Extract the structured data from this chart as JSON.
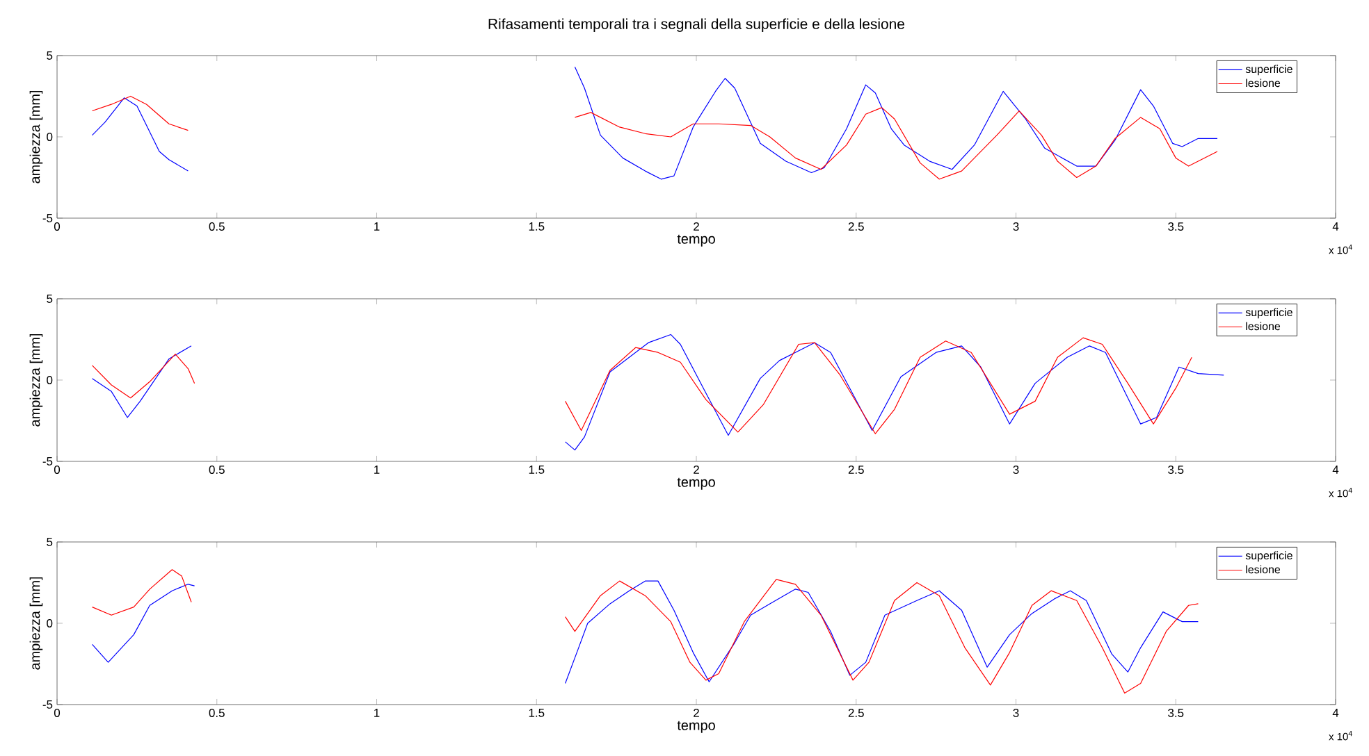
{
  "chart_data": [
    {
      "type": "line",
      "title": "Rifasamenti temporali tra i segnali della superficie e della lesione",
      "xlabel": "tempo",
      "ylabel": "ampiezza [mm]",
      "xlim": [
        0,
        4
      ],
      "xticks": [
        0,
        0.5,
        1,
        1.5,
        2,
        2.5,
        3,
        3.5,
        4
      ],
      "ylim": [
        -5,
        5
      ],
      "yticks": [
        -5,
        0,
        5
      ],
      "legend": "top right",
      "annotations": [
        "x 10$^{4}$"
      ],
      "series": [
        {
          "name": "superficie",
          "color": "#0000ff",
          "x": [
            0.11,
            0.15,
            0.21,
            0.25,
            0.32,
            0.35,
            0.41,
            null,
            1.62,
            1.65,
            1.7,
            1.77,
            1.84,
            1.89,
            1.93,
            1.99,
            2.06,
            2.09,
            2.12,
            2.2,
            2.28,
            2.36,
            2.4,
            2.47,
            2.53,
            2.56,
            2.61,
            2.65,
            2.73,
            2.8,
            2.87,
            2.96,
            3.03,
            3.09,
            3.19,
            3.25,
            3.31,
            3.39,
            3.43,
            3.49,
            3.52,
            3.57,
            3.63
          ],
          "values": [
            0.1,
            0.9,
            2.4,
            1.9,
            -0.9,
            -1.4,
            -2.1,
            null,
            4.3,
            3.0,
            0.1,
            -1.3,
            -2.1,
            -2.6,
            -2.4,
            0.6,
            2.8,
            3.6,
            3.0,
            -0.4,
            -1.5,
            -2.2,
            -1.9,
            0.5,
            3.2,
            2.7,
            0.5,
            -0.5,
            -1.5,
            -2.0,
            -0.5,
            2.8,
            1.1,
            -0.7,
            -1.8,
            -1.8,
            -0.2,
            2.9,
            1.9,
            -0.4,
            -0.6,
            -0.1,
            -0.1
          ]
        },
        {
          "name": "lesione",
          "color": "#ff0000",
          "x": [
            0.11,
            0.17,
            0.23,
            0.28,
            0.35,
            0.41,
            null,
            1.62,
            1.67,
            1.76,
            1.84,
            1.92,
            1.99,
            2.07,
            2.17,
            2.23,
            2.31,
            2.39,
            2.47,
            2.53,
            2.58,
            2.62,
            2.7,
            2.76,
            2.83,
            2.94,
            3.01,
            3.08,
            3.13,
            3.19,
            3.25,
            3.31,
            3.39,
            3.45,
            3.5,
            3.54,
            3.63
          ],
          "values": [
            1.6,
            2.0,
            2.5,
            2.0,
            0.8,
            0.4,
            null,
            1.2,
            1.5,
            0.6,
            0.2,
            0,
            0.8,
            0.8,
            0.7,
            0,
            -1.3,
            -2.0,
            -0.5,
            1.4,
            1.8,
            1.1,
            -1.6,
            -2.6,
            -2.1,
            0.1,
            1.6,
            0.1,
            -1.5,
            -2.5,
            -1.8,
            -0.1,
            1.2,
            0.5,
            -1.3,
            -1.8,
            -0.9
          ]
        }
      ]
    },
    {
      "type": "line",
      "xlabel": "tempo",
      "ylabel": "ampiezza [mm]",
      "xlim": [
        0,
        4
      ],
      "xticks": [
        0,
        0.5,
        1,
        1.5,
        2,
        2.5,
        3,
        3.5,
        4
      ],
      "ylim": [
        -5,
        5
      ],
      "yticks": [
        -5,
        0,
        5
      ],
      "legend": "top right",
      "annotations": [
        "x 10$^{4}$"
      ],
      "series": [
        {
          "name": "superficie",
          "color": "#0000ff",
          "x": [
            0.11,
            0.17,
            0.22,
            0.26,
            0.35,
            0.42,
            null,
            1.59,
            1.62,
            1.65,
            1.73,
            1.79,
            1.85,
            1.92,
            1.95,
            2.03,
            2.1,
            2.2,
            2.26,
            2.37,
            2.42,
            2.48,
            2.55,
            2.64,
            2.75,
            2.83,
            2.89,
            2.98,
            3.06,
            3.16,
            3.23,
            3.28,
            3.39,
            3.44,
            3.51,
            3.57,
            3.65
          ],
          "values": [
            0.1,
            -0.7,
            -2.3,
            -1.3,
            1.3,
            2.1,
            null,
            -3.8,
            -4.3,
            -3.5,
            0.5,
            1.4,
            2.3,
            2.8,
            2.2,
            -0.8,
            -3.4,
            0.1,
            1.2,
            2.3,
            1.7,
            -0.5,
            -3.1,
            0.2,
            1.7,
            2.1,
            0.8,
            -2.7,
            -0.2,
            1.4,
            2.1,
            1.7,
            -2.7,
            -2.3,
            0.8,
            0.4,
            0.3
          ]
        },
        {
          "name": "lesione",
          "color": "#ff0000",
          "x": [
            0.11,
            0.17,
            0.23,
            0.29,
            0.37,
            0.41,
            0.43,
            null,
            1.59,
            1.64,
            1.73,
            1.81,
            1.88,
            1.95,
            2.03,
            2.13,
            2.21,
            2.32,
            2.37,
            2.45,
            2.56,
            2.62,
            2.7,
            2.78,
            2.86,
            2.98,
            3.06,
            3.13,
            3.21,
            3.27,
            3.35,
            3.43,
            3.5,
            3.55
          ],
          "values": [
            0.9,
            -0.3,
            -1.1,
            -0.1,
            1.6,
            0.7,
            -0.2,
            null,
            -1.3,
            -3.1,
            0.6,
            2.0,
            1.7,
            1.1,
            -1.2,
            -3.2,
            -1.5,
            2.2,
            2.3,
            0.3,
            -3.3,
            -1.8,
            1.4,
            2.4,
            1.7,
            -2.1,
            -1.3,
            1.4,
            2.6,
            2.2,
            -0.2,
            -2.7,
            -0.5,
            1.4
          ]
        }
      ]
    },
    {
      "type": "line",
      "xlabel": "tempo",
      "ylabel": "ampiezza [mm]",
      "xlim": [
        0,
        4
      ],
      "xticks": [
        0,
        0.5,
        1,
        1.5,
        2,
        2.5,
        3,
        3.5,
        4
      ],
      "ylim": [
        -5,
        5
      ],
      "yticks": [
        -5,
        0,
        5
      ],
      "legend": "top right",
      "annotations": [
        "x 10$^{4}$"
      ],
      "series": [
        {
          "name": "superficie",
          "color": "#0000ff",
          "x": [
            0.11,
            0.16,
            0.24,
            0.29,
            0.36,
            0.41,
            0.43,
            null,
            1.59,
            1.63,
            1.66,
            1.73,
            1.79,
            1.84,
            1.88,
            1.93,
            1.99,
            2.04,
            2.12,
            2.17,
            2.23,
            2.31,
            2.35,
            2.42,
            2.48,
            2.53,
            2.59,
            2.69,
            2.76,
            2.83,
            2.91,
            2.98,
            3.05,
            3.12,
            3.17,
            3.22,
            3.3,
            3.35,
            3.39,
            3.46,
            3.52,
            3.57
          ],
          "values": [
            -1.3,
            -2.4,
            -0.7,
            1.1,
            2.0,
            2.4,
            2.3,
            null,
            -3.7,
            -1.6,
            0,
            1.2,
            2.0,
            2.6,
            2.6,
            0.8,
            -1.8,
            -3.6,
            -1.2,
            0.5,
            1.2,
            2.1,
            1.9,
            -0.5,
            -3.2,
            -2.4,
            0.5,
            1.4,
            2.0,
            0.8,
            -2.7,
            -0.7,
            0.6,
            1.5,
            2.0,
            1.4,
            -1.9,
            -3.0,
            -1.5,
            0.7,
            0.1,
            0.1
          ]
        },
        {
          "name": "lesione",
          "color": "#ff0000",
          "x": [
            0.11,
            0.17,
            0.24,
            0.29,
            0.36,
            0.39,
            0.42,
            null,
            1.59,
            1.62,
            1.7,
            1.76,
            1.84,
            1.92,
            1.98,
            2.03,
            2.07,
            2.15,
            2.25,
            2.31,
            2.39,
            2.49,
            2.54,
            2.62,
            2.69,
            2.76,
            2.84,
            2.92,
            2.98,
            3.05,
            3.11,
            3.19,
            3.27,
            3.34,
            3.39,
            3.47,
            3.54,
            3.57
          ],
          "values": [
            1.0,
            0.5,
            1.0,
            2.1,
            3.3,
            2.9,
            1.3,
            null,
            0.4,
            -0.5,
            1.7,
            2.6,
            1.7,
            0.1,
            -2.4,
            -3.5,
            -3.1,
            0.1,
            2.7,
            2.4,
            0.5,
            -3.5,
            -2.4,
            1.4,
            2.5,
            1.7,
            -1.5,
            -3.8,
            -1.8,
            1.1,
            2.0,
            1.4,
            -1.5,
            -4.3,
            -3.7,
            -0.5,
            1.1,
            1.2
          ]
        }
      ]
    }
  ]
}
